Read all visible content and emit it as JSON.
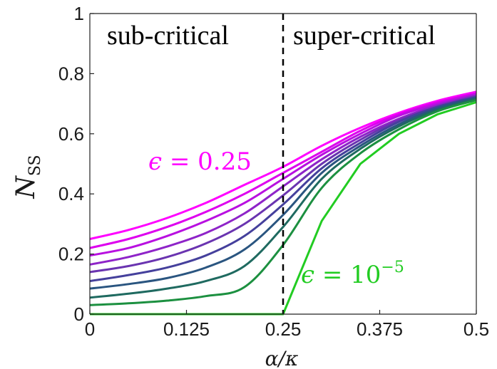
{
  "chart_data": {
    "type": "line",
    "xlabel": "α/κ",
    "ylabel": "N",
    "ylabel_sub": "SS",
    "xlim": [
      0,
      0.5
    ],
    "ylim": [
      0,
      1
    ],
    "x_ticks": [
      0,
      0.125,
      0.25,
      0.375,
      0.5
    ],
    "x_tick_labels": [
      "0",
      "0.125",
      "0.25",
      "0.375",
      "0.5"
    ],
    "y_ticks": [
      0,
      0.2,
      0.4,
      0.6,
      0.8,
      1
    ],
    "y_tick_labels": [
      "0",
      "0.2",
      "0.4",
      "0.6",
      "0.8",
      "1"
    ],
    "grid": false,
    "threshold_x": 0.25,
    "regions": {
      "left": "sub-critical",
      "right": "super-critical"
    },
    "annotations": {
      "top": {
        "text_prefix": "ϵ = ",
        "value": "0.25",
        "color": "#ff00ff"
      },
      "bottom": {
        "text_prefix": "ϵ = ",
        "base": "10",
        "exponent": "−5",
        "color": "#22cc22"
      }
    },
    "x": [
      0,
      0.05,
      0.1,
      0.15,
      0.2,
      0.25,
      0.3,
      0.35,
      0.4,
      0.45,
      0.5
    ],
    "series": [
      {
        "color": "#ff00ff",
        "values": [
          0.25,
          0.28,
          0.32,
          0.37,
          0.43,
          0.49,
          0.56,
          0.62,
          0.67,
          0.71,
          0.74
        ]
      },
      {
        "color": "#dd00ee",
        "values": [
          0.22,
          0.25,
          0.29,
          0.34,
          0.4,
          0.47,
          0.54,
          0.61,
          0.665,
          0.705,
          0.735
        ]
      },
      {
        "color": "#b810e0",
        "values": [
          0.195,
          0.22,
          0.26,
          0.31,
          0.37,
          0.45,
          0.53,
          0.6,
          0.66,
          0.7,
          0.732
        ]
      },
      {
        "color": "#8e24c8",
        "values": [
          0.165,
          0.19,
          0.225,
          0.27,
          0.335,
          0.425,
          0.515,
          0.59,
          0.65,
          0.695,
          0.728
        ]
      },
      {
        "color": "#6a34b0",
        "values": [
          0.14,
          0.16,
          0.19,
          0.235,
          0.3,
          0.395,
          0.5,
          0.58,
          0.645,
          0.69,
          0.725
        ]
      },
      {
        "color": "#45409c",
        "values": [
          0.11,
          0.13,
          0.155,
          0.195,
          0.26,
          0.365,
          0.485,
          0.57,
          0.64,
          0.69,
          0.722
        ]
      },
      {
        "color": "#2a5580",
        "values": [
          0.085,
          0.1,
          0.12,
          0.155,
          0.215,
          0.33,
          0.47,
          0.56,
          0.632,
          0.685,
          0.72
        ]
      },
      {
        "color": "#1f6a60",
        "values": [
          0.055,
          0.068,
          0.085,
          0.11,
          0.16,
          0.29,
          0.45,
          0.55,
          0.625,
          0.68,
          0.716
        ]
      },
      {
        "color": "#1c9040",
        "values": [
          0.03,
          0.036,
          0.045,
          0.06,
          0.09,
          0.23,
          0.42,
          0.535,
          0.615,
          0.675,
          0.712
        ]
      },
      {
        "color": "#22cc22",
        "values": [
          0,
          0,
          0,
          0,
          0,
          0,
          0.31,
          0.5,
          0.6,
          0.665,
          0.705
        ]
      }
    ]
  }
}
